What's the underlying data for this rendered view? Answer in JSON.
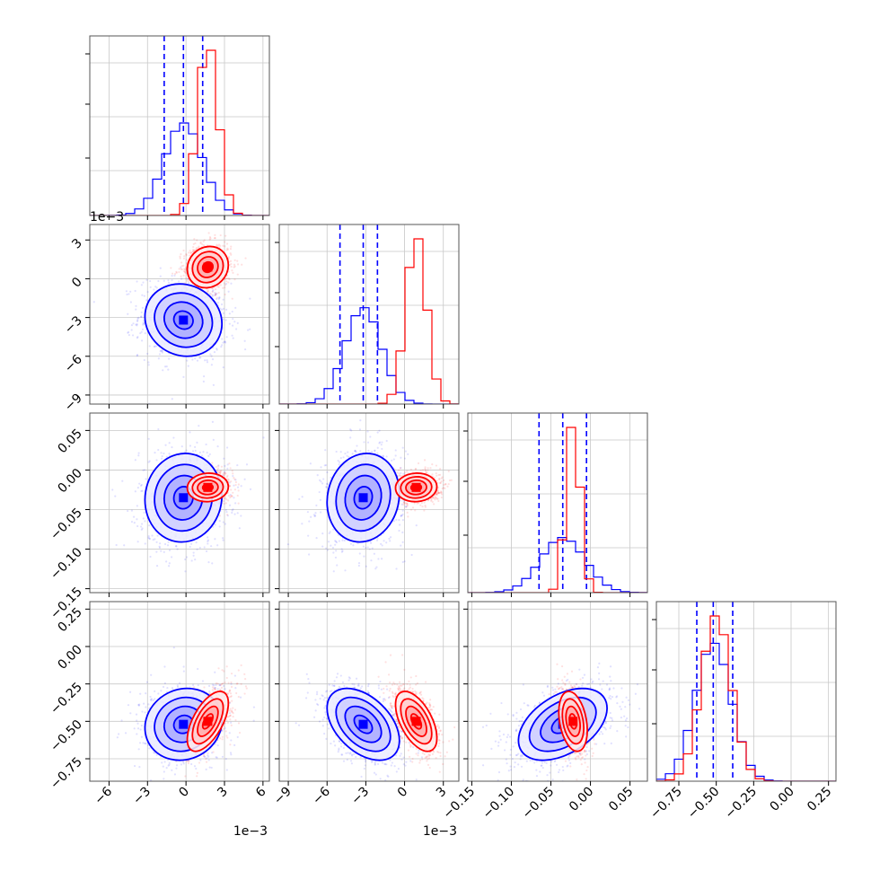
{
  "chart_data": {
    "type": "scatter",
    "kind": "corner plot",
    "grid": true,
    "parameters": [
      {
        "axis_range": [
          -0.0075,
          0.0065
        ],
        "ticks": [
          -0.006,
          -0.003,
          0.0,
          0.003,
          0.006
        ],
        "tick_labels": [
          "−6",
          "−3",
          "0",
          "3",
          "6"
        ],
        "offset_label": "1e−3"
      },
      {
        "axis_range": [
          -0.0097,
          0.0042
        ],
        "ticks": [
          -0.009,
          -0.006,
          -0.003,
          0.0,
          0.003
        ],
        "tick_labels": [
          "−9",
          "−6",
          "−3",
          "0",
          "3"
        ],
        "offset_label": "1e−3"
      },
      {
        "axis_range": [
          -0.155,
          0.072
        ],
        "ticks": [
          -0.15,
          -0.1,
          -0.05,
          0.0,
          0.05
        ],
        "tick_labels": [
          "−0.15",
          "−0.10",
          "−0.05",
          "0.00",
          "0.05"
        ],
        "offset_label": ""
      },
      {
        "axis_range": [
          -0.9,
          0.3
        ],
        "ticks": [
          -0.75,
          -0.5,
          -0.25,
          0.0,
          0.25
        ],
        "tick_labels": [
          "−0.75",
          "−0.50",
          "−0.25",
          "0.00",
          "0.25"
        ],
        "offset_label": ""
      }
    ],
    "series": [
      {
        "color": "#0000ff",
        "means": [
          -0.0002,
          -0.0032,
          -0.035,
          -0.52
        ],
        "sigmas": [
          0.0015,
          0.0014,
          0.028,
          0.12
        ],
        "correlations": {
          "1-0": -0.1,
          "2-0": 0.05,
          "2-1": 0.1,
          "3-0": 0.1,
          "3-1": -0.45,
          "3-2": 0.45
        },
        "quantile_lines": [
          [
            -0.0017,
            -0.0002,
            0.0013
          ],
          [
            -0.005,
            -0.0032,
            -0.0021
          ],
          [
            -0.065,
            -0.035,
            -0.005
          ],
          [
            -0.63,
            -0.52,
            -0.39
          ]
        ]
      },
      {
        "color": "#ff0000",
        "means": [
          0.0017,
          0.0009,
          -0.022,
          -0.5
        ],
        "sigmas": [
          0.0008,
          0.0008,
          0.009,
          0.1
        ],
        "correlations": {
          "1-0": 0.1,
          "2-0": 0.05,
          "2-1": 0.05,
          "3-0": 0.6,
          "3-1": -0.55,
          "3-2": -0.3
        },
        "quantile_lines": []
      }
    ],
    "hist_bins": 20,
    "contour_levels_sigma": [
      0.5,
      1.0,
      1.5,
      2.0
    ]
  }
}
